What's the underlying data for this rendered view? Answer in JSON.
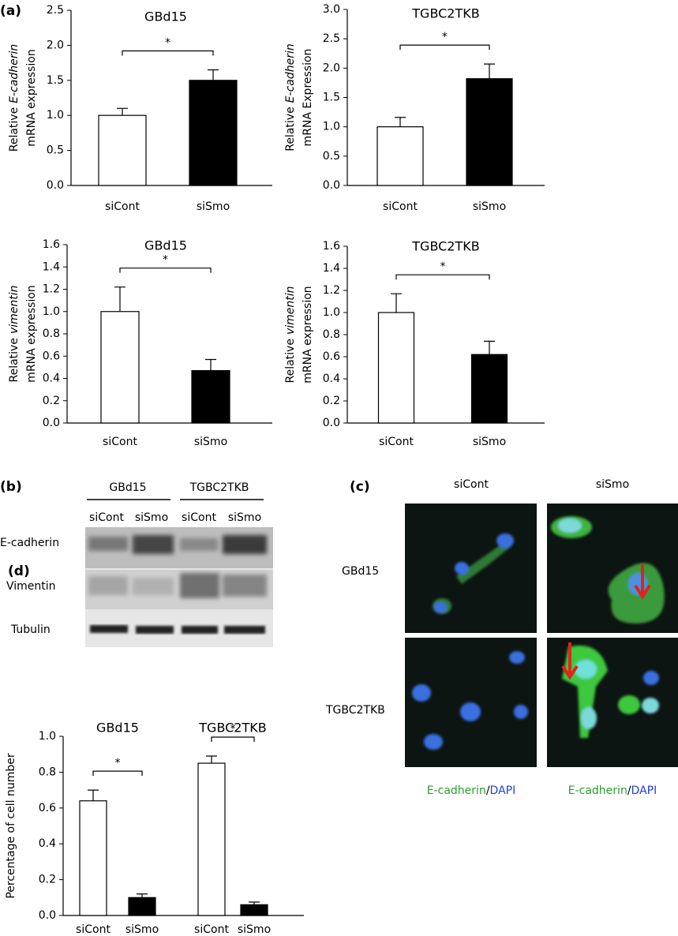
{
  "panel_labels": [
    "(a)",
    "(b)",
    "(c)",
    "(d)"
  ],
  "chart_data": [
    {
      "type": "bar",
      "title": "GBd15",
      "ylabel": [
        [
          "Relative",
          "E-cadherin"
        ],
        [
          "mRNA expression"
        ]
      ],
      "categories": [
        "siCont",
        "siSmo"
      ],
      "values": [
        1.0,
        1.5
      ],
      "errors": [
        0.1,
        0.15
      ],
      "colors": [
        "#ffffff",
        "#000000"
      ],
      "annotations": [
        "*"
      ],
      "ylim": [
        0,
        2.5
      ],
      "yticks": [
        {
          "value": 0,
          "label": "0.0"
        },
        {
          "value": 0.5,
          "label": "0.5"
        },
        {
          "value": 1,
          "label": "1.0"
        },
        {
          "value": 1.5,
          "label": "1.5"
        },
        {
          "value": 2,
          "label": "2.0"
        },
        {
          "value": 2.5,
          "label": "2.5"
        }
      ]
    },
    {
      "type": "bar",
      "title": "TGBC2TKB",
      "ylabel": [
        [
          "Relative",
          "E-cadherin"
        ],
        [
          "mRNA Expression"
        ]
      ],
      "categories": [
        "siCont",
        "siSmo"
      ],
      "values": [
        1.0,
        1.82
      ],
      "errors": [
        0.16,
        0.25
      ],
      "colors": [
        "#ffffff",
        "#000000"
      ],
      "annotations": [
        "*"
      ],
      "ylim": [
        0,
        3
      ],
      "yticks": [
        {
          "value": 0,
          "label": "0.0"
        },
        {
          "value": 0.5,
          "label": "0.5"
        },
        {
          "value": 1,
          "label": "1.0"
        },
        {
          "value": 1.5,
          "label": "1.5"
        },
        {
          "value": 2,
          "label": "2.0"
        },
        {
          "value": 2.5,
          "label": "2.5"
        },
        {
          "value": 3,
          "label": "3.0"
        }
      ]
    },
    {
      "type": "bar",
      "title": "GBd15",
      "ylabel": [
        [
          "Relative",
          "vimentin"
        ],
        [
          "mRNA expression"
        ]
      ],
      "categories": [
        "siCont",
        "siSmo"
      ],
      "values": [
        1.0,
        0.47
      ],
      "errors": [
        0.22,
        0.1
      ],
      "colors": [
        "#ffffff",
        "#000000"
      ],
      "annotations": [
        "*"
      ],
      "ylim": [
        0,
        1.6
      ],
      "yticks": [
        {
          "value": 0,
          "label": "0.0"
        },
        {
          "value": 0.2,
          "label": "0.2"
        },
        {
          "value": 0.4,
          "label": "0.4"
        },
        {
          "value": 0.6,
          "label": "0.6"
        },
        {
          "value": 0.8,
          "label": "0.8"
        },
        {
          "value": 1,
          "label": "1.0"
        },
        {
          "value": 1.2,
          "label": "1.2"
        },
        {
          "value": 1.4,
          "label": "1.4"
        },
        {
          "value": 1.6,
          "label": "1.6"
        }
      ]
    },
    {
      "type": "bar",
      "title": "TGBC2TKB",
      "ylabel": [
        [
          "Relative",
          "vimentin"
        ],
        [
          "mRNA expression"
        ]
      ],
      "categories": [
        "siCont",
        "siSmo"
      ],
      "values": [
        1.0,
        0.62
      ],
      "errors": [
        0.17,
        0.12
      ],
      "colors": [
        "#ffffff",
        "#000000"
      ],
      "annotations": [
        "*"
      ],
      "ylim": [
        0,
        1.6
      ],
      "yticks": [
        {
          "value": 0,
          "label": "0.0"
        },
        {
          "value": 0.2,
          "label": "0.2"
        },
        {
          "value": 0.4,
          "label": "0.4"
        },
        {
          "value": 0.6,
          "label": "0.6"
        },
        {
          "value": 0.8,
          "label": "0.8"
        },
        {
          "value": 1,
          "label": "1.0"
        },
        {
          "value": 1.2,
          "label": "1.2"
        },
        {
          "value": 1.4,
          "label": "1.4"
        },
        {
          "value": 1.6,
          "label": "1.6"
        }
      ]
    },
    {
      "type": "bar",
      "groups": [
        "GBd15",
        "TGBC2TKB"
      ],
      "ylabel": [
        [
          "Percentage of  cell number"
        ]
      ],
      "categories": [
        "siCont",
        "siSmo",
        "siCont",
        "siSmo"
      ],
      "values": [
        0.64,
        0.1,
        0.85,
        0.06
      ],
      "errors": [
        0.06,
        0.02,
        0.04,
        0.015
      ],
      "colors": [
        "#ffffff",
        "#000000",
        "#ffffff",
        "#000000"
      ],
      "annotations": [
        "*",
        "*"
      ],
      "ylim": [
        0,
        1
      ],
      "yticks": [
        {
          "value": 0,
          "label": "0.0"
        },
        {
          "value": 0.2,
          "label": "0.2"
        },
        {
          "value": 0.4,
          "label": "0.4"
        },
        {
          "value": 0.6,
          "label": "0.6"
        },
        {
          "value": 0.8,
          "label": "0.8"
        },
        {
          "value": 1,
          "label": "1.0"
        }
      ]
    }
  ],
  "blot": {
    "groups": [
      "GBd15",
      "TGBC2TKB"
    ],
    "lanes": [
      "siCont",
      "siSmo",
      "siCont",
      "siSmo"
    ],
    "rows": [
      "E-cadherin",
      "Vimentin",
      "Tubulin"
    ]
  },
  "microscopy": {
    "columns": [
      "siCont",
      "siSmo"
    ],
    "rows": [
      "GBd15",
      "TGBC2TKB"
    ],
    "caption": [
      "E-cadherin",
      "/",
      "DAPI"
    ]
  }
}
